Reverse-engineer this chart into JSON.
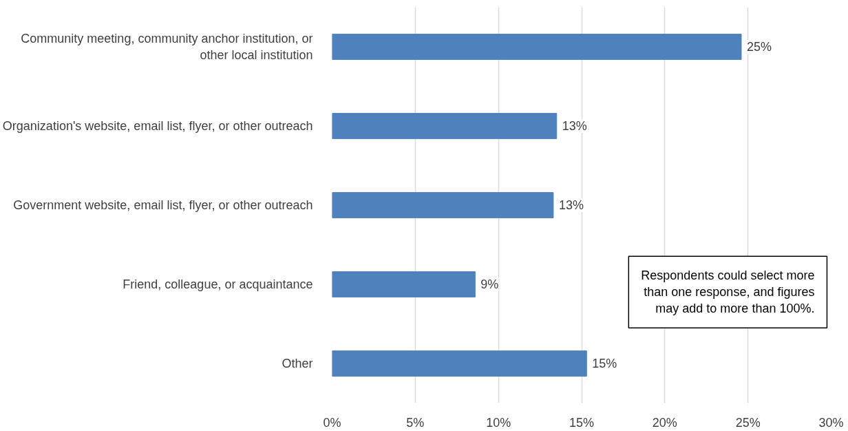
{
  "chart_data": {
    "type": "bar",
    "orientation": "horizontal",
    "categories": [
      "Community meeting, community anchor institution, or other local institution",
      "Organization's website, email list, flyer, or other outreach",
      "Government website, email list, flyer, or other outreach",
      "Friend, colleague, or acquaintance",
      "Other"
    ],
    "values": [
      24.6,
      13.5,
      13.3,
      8.6,
      15.3
    ],
    "value_labels": [
      "25%",
      "13%",
      "13%",
      "9%",
      "15%"
    ],
    "color": "#4f81bd",
    "xlim": [
      0,
      30
    ],
    "xticks": [
      {
        "value": 0,
        "label": "0%"
      },
      {
        "value": 5,
        "label": "5%"
      },
      {
        "value": 10,
        "label": "10%"
      },
      {
        "value": 15,
        "label": "15%"
      },
      {
        "value": 20,
        "label": "20%"
      },
      {
        "value": 25,
        "label": "25%"
      },
      {
        "value": 30,
        "label": "30%"
      }
    ],
    "grid": "x",
    "annotations": [
      "Respondents could select more than one response, and figures may add to more than 100%."
    ]
  }
}
